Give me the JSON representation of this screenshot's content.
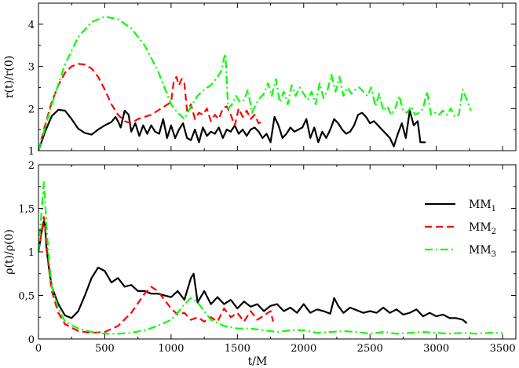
{
  "chart_data": [
    {
      "type": "line",
      "ylabel": "r(t)/r(0)",
      "xlabel": "",
      "xlim": [
        0,
        3600
      ],
      "ylim": [
        1,
        4.5
      ],
      "xticks": [
        0,
        500,
        1000,
        1500,
        2000,
        2500,
        3000,
        3500
      ],
      "yticks": [
        1,
        2,
        3,
        4
      ],
      "yticklabels": [
        "1",
        "2",
        "3",
        "4"
      ],
      "show_xtick_labels": false,
      "grid": false,
      "series": [
        {
          "name": "MM1",
          "color": "#000000",
          "dash": "solid",
          "x": [
            0,
            50,
            100,
            150,
            200,
            250,
            300,
            350,
            400,
            450,
            500,
            550,
            580,
            600,
            620,
            650,
            680,
            700,
            730,
            760,
            790,
            820,
            850,
            880,
            910,
            940,
            970,
            1000,
            1030,
            1060,
            1090,
            1120,
            1150,
            1180,
            1210,
            1240,
            1270,
            1300,
            1330,
            1360,
            1390,
            1420,
            1450,
            1480,
            1510,
            1540,
            1570,
            1600,
            1630,
            1660,
            1690,
            1720,
            1750,
            1780,
            1810,
            1840,
            1870,
            1900,
            1930,
            1960,
            1990,
            2020,
            2050,
            2080,
            2110,
            2140,
            2170,
            2200,
            2230,
            2260,
            2290,
            2320,
            2350,
            2380,
            2410,
            2440,
            2470,
            2500,
            2530,
            2560,
            2590,
            2620,
            2650,
            2680,
            2710,
            2740,
            2770,
            2800,
            2830,
            2860,
            2880,
            2920
          ],
          "y": [
            1.0,
            1.45,
            1.82,
            1.97,
            1.95,
            1.75,
            1.52,
            1.42,
            1.38,
            1.5,
            1.6,
            1.68,
            1.8,
            1.7,
            1.55,
            1.95,
            1.85,
            1.45,
            1.65,
            1.35,
            1.6,
            1.4,
            1.6,
            1.45,
            1.4,
            1.75,
            1.3,
            1.6,
            1.3,
            1.5,
            1.65,
            1.3,
            1.25,
            1.5,
            1.2,
            1.55,
            1.35,
            1.45,
            1.4,
            1.55,
            1.3,
            1.5,
            1.45,
            1.6,
            1.4,
            1.5,
            1.35,
            1.5,
            1.55,
            1.45,
            1.3,
            1.4,
            1.2,
            1.8,
            1.6,
            1.3,
            1.4,
            1.55,
            1.45,
            1.5,
            1.55,
            1.75,
            1.3,
            1.55,
            1.2,
            1.45,
            1.3,
            1.5,
            1.75,
            1.65,
            1.5,
            1.4,
            1.45,
            1.6,
            1.85,
            1.9,
            1.8,
            1.65,
            1.7,
            1.6,
            1.5,
            1.4,
            1.3,
            1.1,
            1.4,
            1.65,
            1.3,
            1.95,
            1.6,
            1.7,
            1.2,
            1.2
          ]
        },
        {
          "name": "MM2",
          "color": "#ff0000",
          "dash": "dashed",
          "x": [
            0,
            50,
            100,
            150,
            200,
            250,
            300,
            350,
            400,
            450,
            500,
            550,
            600,
            650,
            700,
            750,
            800,
            850,
            900,
            950,
            1000,
            1020,
            1040,
            1060,
            1080,
            1100,
            1120,
            1150,
            1180,
            1210,
            1240,
            1270,
            1300,
            1330,
            1360,
            1390,
            1420,
            1450,
            1480,
            1510,
            1540,
            1570,
            1600,
            1630,
            1660,
            1690
          ],
          "y": [
            1.0,
            1.6,
            2.15,
            2.55,
            2.85,
            3.0,
            3.06,
            3.04,
            2.95,
            2.75,
            2.45,
            2.1,
            1.85,
            1.7,
            1.65,
            1.75,
            1.8,
            1.85,
            1.95,
            2.05,
            2.15,
            2.65,
            2.75,
            2.55,
            2.7,
            2.6,
            1.95,
            2.1,
            1.75,
            1.9,
            1.85,
            2.0,
            1.7,
            1.85,
            1.75,
            2.0,
            2.05,
            1.85,
            1.6,
            2.0,
            1.8,
            1.95,
            1.75,
            1.85,
            1.65,
            1.7
          ]
        },
        {
          "name": "MM3",
          "color": "#00ff00",
          "dash": "dashdot",
          "x": [
            0,
            100,
            200,
            300,
            400,
            500,
            600,
            700,
            800,
            900,
            1000,
            1050,
            1100,
            1150,
            1200,
            1250,
            1300,
            1350,
            1380,
            1400,
            1410,
            1430,
            1460,
            1490,
            1520,
            1550,
            1580,
            1610,
            1640,
            1670,
            1700,
            1730,
            1760,
            1790,
            1820,
            1850,
            1880,
            1910,
            1940,
            1970,
            2000,
            2030,
            2060,
            2090,
            2120,
            2150,
            2180,
            2210,
            2240,
            2270,
            2300,
            2330,
            2360,
            2390,
            2420,
            2450,
            2480,
            2510,
            2540,
            2570,
            2600,
            2630,
            2660,
            2690,
            2720,
            2750,
            2780,
            2810,
            2840,
            2870,
            2900,
            2930,
            2960,
            2990,
            3020,
            3050,
            3080,
            3110,
            3140,
            3170,
            3200,
            3230,
            3260
          ],
          "y": [
            1.0,
            2.1,
            3.05,
            3.7,
            4.05,
            4.18,
            4.12,
            3.9,
            3.5,
            2.9,
            2.1,
            1.9,
            1.75,
            2.05,
            2.3,
            2.45,
            2.55,
            2.75,
            2.9,
            3.2,
            3.3,
            2.0,
            2.1,
            2.3,
            2.15,
            2.2,
            2.45,
            1.9,
            2.1,
            2.25,
            2.35,
            2.6,
            2.3,
            2.7,
            2.15,
            2.4,
            2.1,
            2.55,
            2.3,
            2.5,
            2.35,
            2.2,
            2.4,
            2.1,
            2.6,
            2.25,
            2.45,
            2.8,
            2.4,
            2.75,
            2.3,
            2.5,
            2.35,
            2.45,
            2.5,
            2.4,
            2.3,
            2.5,
            2.05,
            2.35,
            1.95,
            2.05,
            1.85,
            2.0,
            2.3,
            1.95,
            1.9,
            2.05,
            1.85,
            1.9,
            2.0,
            2.4,
            1.85,
            1.9,
            1.85,
            1.95,
            1.85,
            2.0,
            1.8,
            1.85,
            2.45,
            2.2,
            1.95
          ]
        }
      ]
    },
    {
      "type": "line",
      "ylabel": "ρ(t)/ρ(0)",
      "xlabel": "t/M",
      "xlim": [
        0,
        3600
      ],
      "ylim": [
        0,
        2
      ],
      "xticks": [
        0,
        500,
        1000,
        1500,
        2000,
        2500,
        3000,
        3500
      ],
      "xticklabels": [
        "0",
        "500",
        "1000",
        "1500",
        "2000",
        "2500",
        "3000",
        "3500"
      ],
      "yticks": [
        0,
        0.5,
        1,
        1.5,
        2
      ],
      "yticklabels": [
        "0",
        "0,5",
        "1",
        "1,5",
        "2"
      ],
      "grid": false,
      "legend_position": "right",
      "series": [
        {
          "name": "MM1",
          "color": "#000000",
          "dash": "solid",
          "x": [
            0,
            20,
            40,
            50,
            60,
            80,
            100,
            150,
            200,
            250,
            300,
            350,
            400,
            450,
            500,
            550,
            600,
            650,
            700,
            750,
            800,
            850,
            900,
            950,
            1000,
            1050,
            1100,
            1150,
            1170,
            1200,
            1250,
            1300,
            1350,
            1400,
            1450,
            1500,
            1550,
            1600,
            1650,
            1700,
            1750,
            1800,
            1850,
            1900,
            1950,
            2000,
            2050,
            2100,
            2150,
            2200,
            2230,
            2260,
            2300,
            2350,
            2400,
            2450,
            2500,
            2550,
            2600,
            2650,
            2700,
            2750,
            2800,
            2850,
            2900,
            2950,
            3000,
            3050,
            3100,
            3150,
            3200,
            3230
          ],
          "y": [
            1.0,
            1.2,
            1.35,
            1.3,
            1.05,
            0.8,
            0.6,
            0.4,
            0.27,
            0.24,
            0.32,
            0.5,
            0.7,
            0.82,
            0.78,
            0.65,
            0.7,
            0.6,
            0.62,
            0.55,
            0.55,
            0.52,
            0.52,
            0.5,
            0.48,
            0.55,
            0.45,
            0.7,
            0.75,
            0.42,
            0.55,
            0.4,
            0.48,
            0.4,
            0.45,
            0.35,
            0.43,
            0.37,
            0.4,
            0.32,
            0.38,
            0.4,
            0.32,
            0.36,
            0.3,
            0.4,
            0.3,
            0.34,
            0.32,
            0.29,
            0.47,
            0.38,
            0.3,
            0.36,
            0.33,
            0.3,
            0.32,
            0.3,
            0.36,
            0.3,
            0.34,
            0.28,
            0.3,
            0.34,
            0.26,
            0.3,
            0.26,
            0.28,
            0.24,
            0.24,
            0.22,
            0.18
          ]
        },
        {
          "name": "MM2",
          "color": "#ff0000",
          "dash": "dashed",
          "x": [
            0,
            20,
            40,
            50,
            60,
            80,
            100,
            150,
            200,
            300,
            400,
            500,
            600,
            700,
            800,
            850,
            900,
            950,
            1000,
            1050,
            1100,
            1150,
            1200,
            1250,
            1300,
            1350,
            1400,
            1450,
            1500,
            1550,
            1600,
            1650,
            1700,
            1750,
            1770
          ],
          "y": [
            1.0,
            1.2,
            1.4,
            1.3,
            1.1,
            0.8,
            0.55,
            0.3,
            0.17,
            0.09,
            0.07,
            0.08,
            0.15,
            0.3,
            0.52,
            0.6,
            0.55,
            0.45,
            0.35,
            0.28,
            0.3,
            0.22,
            0.25,
            0.2,
            0.25,
            0.2,
            0.35,
            0.25,
            0.3,
            0.2,
            0.32,
            0.22,
            0.27,
            0.32,
            0.2
          ]
        },
        {
          "name": "MM3",
          "color": "#00ff00",
          "dash": "dashdot",
          "x": [
            0,
            20,
            40,
            50,
            60,
            80,
            100,
            150,
            200,
            300,
            400,
            500,
            600,
            700,
            800,
            900,
            1000,
            1050,
            1100,
            1150,
            1200,
            1250,
            1300,
            1400,
            1500,
            1600,
            1700,
            1800,
            1900,
            2000,
            2100,
            2200,
            2300,
            2400,
            2500,
            2600,
            2700,
            2800,
            2900,
            3000,
            3100,
            3200,
            3300,
            3400,
            3500
          ],
          "y": [
            1.0,
            1.4,
            1.8,
            1.6,
            1.3,
            0.9,
            0.6,
            0.35,
            0.2,
            0.12,
            0.08,
            0.06,
            0.06,
            0.07,
            0.1,
            0.15,
            0.22,
            0.3,
            0.4,
            0.47,
            0.42,
            0.32,
            0.22,
            0.15,
            0.12,
            0.12,
            0.1,
            0.08,
            0.1,
            0.1,
            0.07,
            0.08,
            0.09,
            0.08,
            0.06,
            0.08,
            0.06,
            0.07,
            0.08,
            0.07,
            0.06,
            0.07,
            0.06,
            0.07,
            0.07
          ]
        }
      ]
    }
  ],
  "legend": {
    "items": [
      {
        "name": "MM",
        "sub": "1",
        "color": "#000000",
        "dash": "solid"
      },
      {
        "name": "MM",
        "sub": "2",
        "color": "#ff0000",
        "dash": "dashed"
      },
      {
        "name": "MM",
        "sub": "3",
        "color": "#00ff00",
        "dash": "dashdot"
      }
    ]
  }
}
